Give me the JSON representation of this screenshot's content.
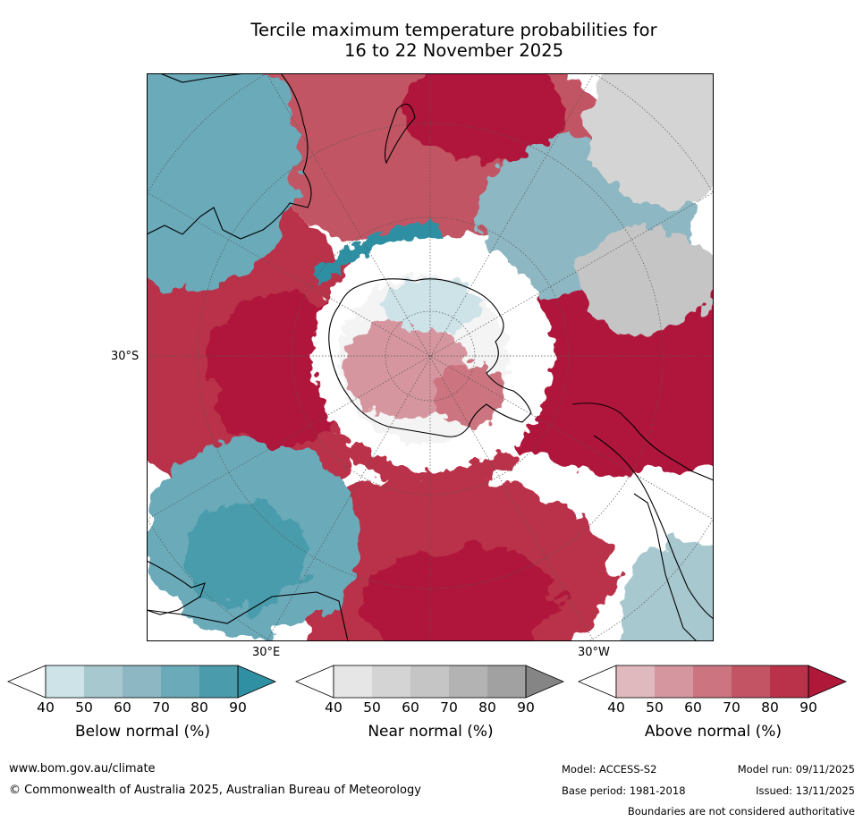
{
  "title": {
    "line1": "Tercile maximum temperature probabilities for",
    "line2": "16 to 22 November 2025"
  },
  "map": {
    "lat_label": "30°S",
    "lon_labels": {
      "east": "30°E",
      "west": "30°W"
    },
    "colors": {
      "above": [
        "#e0b9bf",
        "#d6969f",
        "#cc7580",
        "#c25463",
        "#b93249",
        "#b0183a"
      ],
      "below": [
        "#cde3e8",
        "#a8c8cf",
        "#8db7c2",
        "#6aaab9",
        "#4a9cac",
        "#2f8fa3"
      ],
      "near": [
        "#e6e6e6",
        "#d4d4d4",
        "#c5c5c5",
        "#b3b3b3",
        "#a1a1a1",
        "#858585"
      ]
    }
  },
  "colorbars": [
    {
      "id": "below",
      "label": "Below normal (%)",
      "ticks": [
        "40",
        "50",
        "60",
        "70",
        "80",
        "90"
      ],
      "colors": [
        "#cde3e8",
        "#a8c8cf",
        "#8db7c2",
        "#6aaab9",
        "#4a9cac",
        "#2f8fa3"
      ]
    },
    {
      "id": "near",
      "label": "Near normal (%)",
      "ticks": [
        "40",
        "50",
        "60",
        "70",
        "80",
        "90"
      ],
      "colors": [
        "#e6e6e6",
        "#d4d4d4",
        "#c5c5c5",
        "#b3b3b3",
        "#a1a1a1",
        "#858585"
      ]
    },
    {
      "id": "above",
      "label": "Above normal (%)",
      "ticks": [
        "40",
        "50",
        "60",
        "70",
        "80",
        "90"
      ],
      "colors": [
        "#e0b9bf",
        "#d6969f",
        "#cc7580",
        "#c25463",
        "#b93249",
        "#b0183a"
      ]
    }
  ],
  "footer": {
    "website": "www.bom.gov.au/climate",
    "copyright": "© Commonwealth of Australia 2025, Australian Bureau of Meteorology",
    "model": "Model: ACCESS-S2",
    "model_run": "Model run: 09/11/2025",
    "base_period": "Base period: 1981-2018",
    "issued": "Issued: 13/11/2025",
    "disclaimer": "Boundaries are not considered authoritative"
  }
}
